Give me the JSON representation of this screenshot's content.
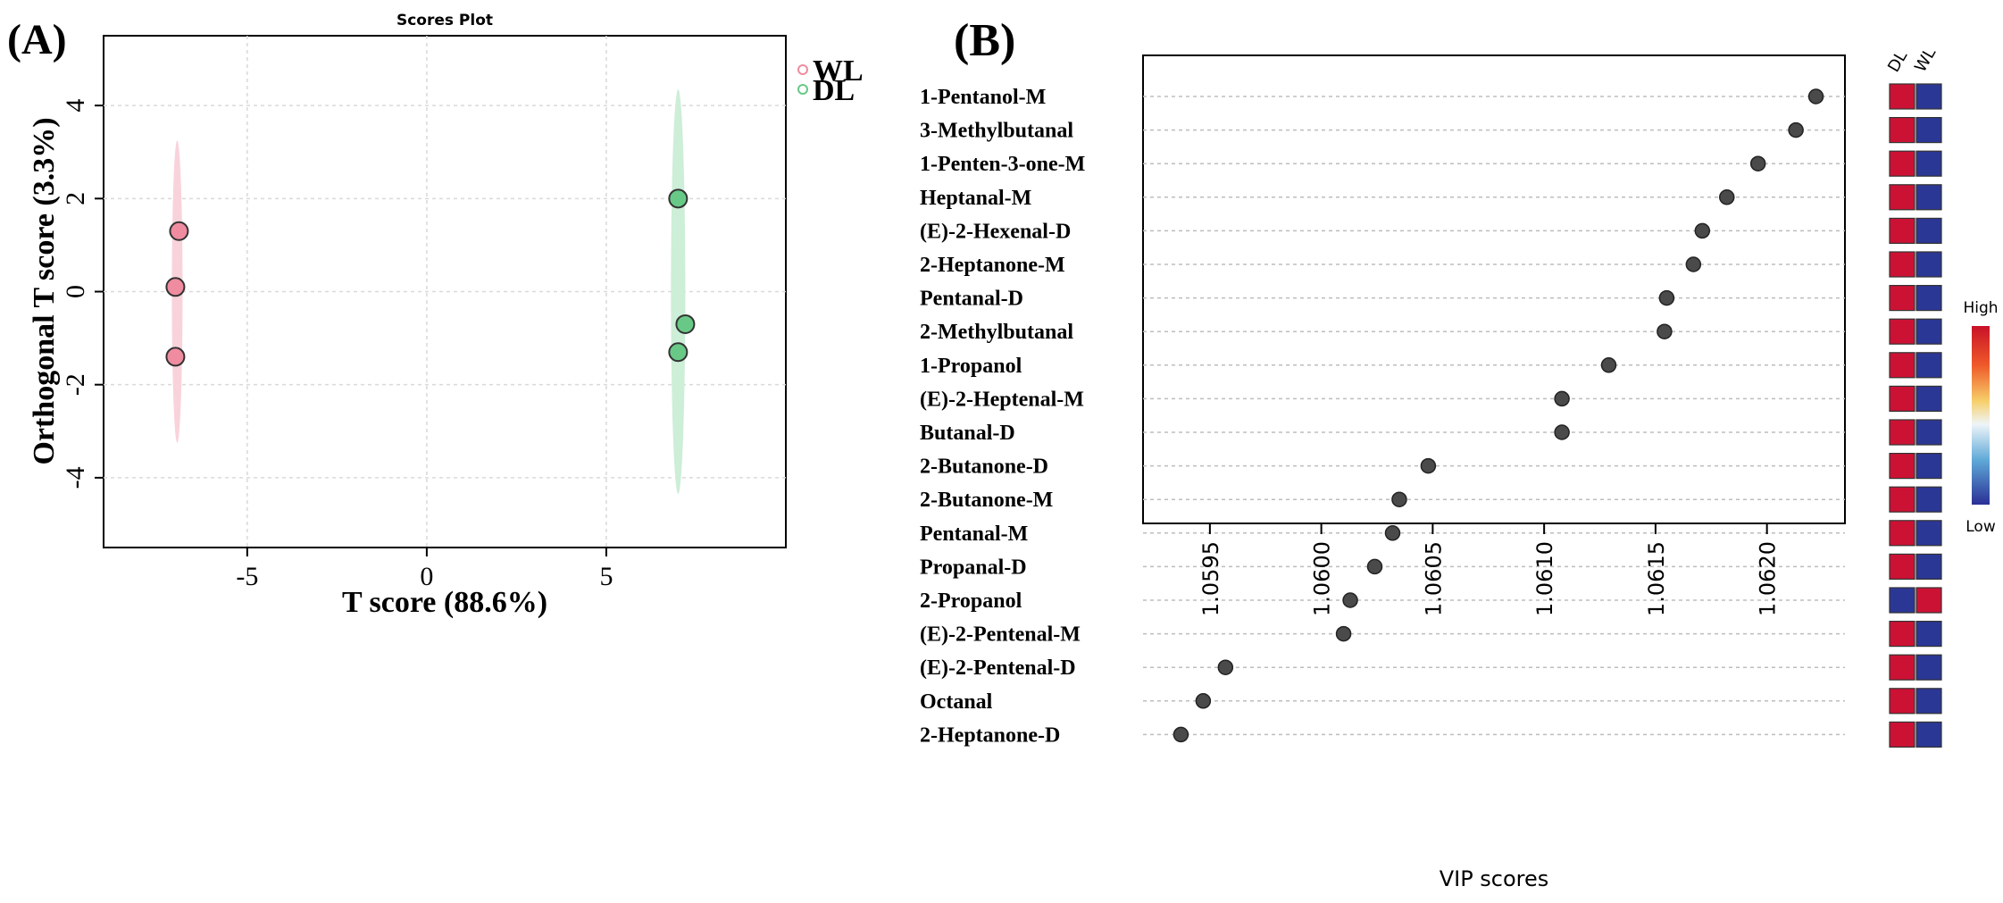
{
  "panel_a": {
    "label": "(A)",
    "chart_data": {
      "type": "scatter",
      "title": "Scores Plot",
      "xlabel": "T score (88.6%)",
      "ylabel": "Orthogonal T score (3.3%)",
      "xlim": [
        -9,
        10
      ],
      "ylim": [
        -5.5,
        5.5
      ],
      "xticks": [
        -5,
        0,
        5
      ],
      "yticks": [
        -4,
        -2,
        0,
        2,
        4
      ],
      "grid": true,
      "legend_position": "top-right",
      "series": [
        {
          "name": "WL",
          "color": "#f08ca0",
          "ellipse_color": "#f9d3db",
          "points": [
            {
              "x": -6.9,
              "y": 1.3
            },
            {
              "x": -7.0,
              "y": 0.1
            },
            {
              "x": -7.0,
              "y": -1.4
            }
          ],
          "ellipse": {
            "cx": -6.95,
            "cy": 0.0,
            "rx": 0.15,
            "ry": 3.25
          }
        },
        {
          "name": "DL",
          "color": "#68c987",
          "ellipse_color": "#cdeed7",
          "points": [
            {
              "x": 7.0,
              "y": 2.0
            },
            {
              "x": 7.2,
              "y": -0.7
            },
            {
              "x": 7.0,
              "y": -1.3
            }
          ],
          "ellipse": {
            "cx": 7.0,
            "cy": 0.0,
            "rx": 0.2,
            "ry": 4.35
          }
        }
      ]
    }
  },
  "panel_b": {
    "label": "(B)",
    "chart_data": {
      "type": "scatter",
      "xlabel": "VIP scores",
      "xlim": [
        1.0592,
        1.06235
      ],
      "xticks": [
        1.0595,
        1.06,
        1.0605,
        1.061,
        1.0615,
        1.062
      ],
      "xtick_labels": [
        "1.0595",
        "1.0600",
        "1.0605",
        "1.0610",
        "1.0615",
        "1.0620"
      ],
      "categories": [
        "1-Pentanol-M",
        "3-Methylbutanal",
        "1-Penten-3-one-M",
        "Heptanal-M",
        "(E)-2-Hexenal-D",
        "2-Heptanone-M",
        "Pentanal-D",
        "2-Methylbutanal",
        "1-Propanol",
        "(E)-2-Heptenal-M",
        "Butanal-D",
        "2-Butanone-D",
        "2-Butanone-M",
        "Pentanal-M",
        "Propanal-D",
        "2-Propanol",
        "(E)-2-Pentenal-M",
        "(E)-2-Pentenal-D",
        "Octanal",
        "2-Heptanone-D"
      ],
      "values": [
        1.06222,
        1.06213,
        1.06196,
        1.06182,
        1.06171,
        1.06167,
        1.06155,
        1.06154,
        1.06129,
        1.06108,
        1.06108,
        1.06048,
        1.06035,
        1.06032,
        1.06024,
        1.06013,
        1.0601,
        1.05957,
        1.05947,
        1.05937
      ],
      "point_color": "#4a4a4a",
      "heatmap": {
        "columns": [
          "DL",
          "WL"
        ],
        "levels": [
          [
            "High",
            "Low"
          ],
          [
            "High",
            "Low"
          ],
          [
            "High",
            "Low"
          ],
          [
            "High",
            "Low"
          ],
          [
            "High",
            "Low"
          ],
          [
            "High",
            "Low"
          ],
          [
            "High",
            "Low"
          ],
          [
            "High",
            "Low"
          ],
          [
            "High",
            "Low"
          ],
          [
            "High",
            "Low"
          ],
          [
            "High",
            "Low"
          ],
          [
            "High",
            "Low"
          ],
          [
            "High",
            "Low"
          ],
          [
            "High",
            "Low"
          ],
          [
            "High",
            "Low"
          ],
          [
            "Low",
            "High"
          ],
          [
            "High",
            "Low"
          ],
          [
            "High",
            "Low"
          ],
          [
            "High",
            "Low"
          ],
          [
            "High",
            "Low"
          ]
        ],
        "high_color": "#cc1234",
        "low_color": "#2b3795",
        "legend_high": "High",
        "legend_low": "Low"
      }
    }
  }
}
